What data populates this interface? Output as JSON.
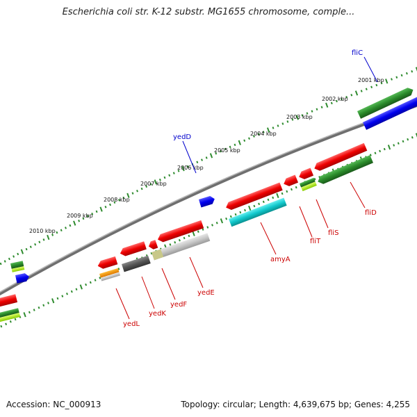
{
  "title": "Escherichia coli str. K-12 substr. MG1655 chromosome, comple...",
  "footer": {
    "accession": "Accession: NC_000913",
    "summary": "Topology: circular; Length: 4,639,675 bp; Genes: 4,255"
  },
  "kbp_labels": [
    "2001 kbp",
    "2002 kbp",
    "2003 kbp",
    "2004 kbp",
    "2005 kbp",
    "2006 kbp",
    "2007 kbp",
    "2008 kbp",
    "2009 kbp",
    "2010 kbp"
  ],
  "genes_forward": [
    {
      "name": "fliC",
      "color": "#0000cc"
    },
    {
      "name": "yedD",
      "color": "#0000cc"
    }
  ],
  "genes_reverse": [
    {
      "name": "fliD",
      "color": "#cc0000"
    },
    {
      "name": "fliS",
      "color": "#cc0000"
    },
    {
      "name": "fliT",
      "color": "#cc0000"
    },
    {
      "name": "amyA",
      "color": "#cc0000"
    },
    {
      "name": "yedE",
      "color": "#cc0000"
    },
    {
      "name": "yedF",
      "color": "#cc0000"
    },
    {
      "name": "yedK",
      "color": "#cc0000"
    },
    {
      "name": "yedL",
      "color": "#cc0000"
    }
  ],
  "colors": {
    "cds_reverse": "#ff1a1a",
    "cds_forward": "#1a1aee",
    "gene": "#2e8b2e",
    "rna": "#22cccc",
    "pseudo": "#bbbbbb",
    "backbone": "#888888"
  }
}
